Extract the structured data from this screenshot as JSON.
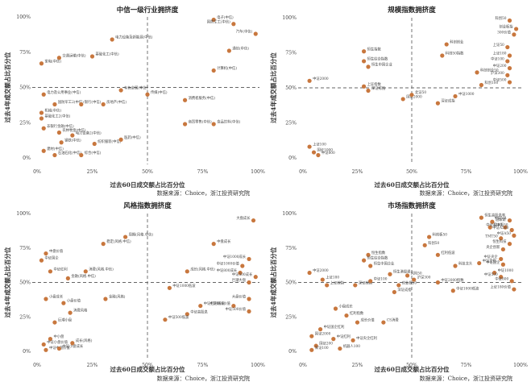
{
  "chart_data": [
    {
      "type": "scatter",
      "title": "中信一级行业拥挤度",
      "xlabel": "过去60日成交额占比百分位",
      "ylabel": "过去4年成交额占比百分位",
      "source": "数据来源：Choice，浙江投资研究院",
      "xlim": [
        0,
        100
      ],
      "ylim": [
        0,
        100
      ],
      "xticks": [
        "0%",
        "25%",
        "50%",
        "75%",
        "100%"
      ],
      "yticks": [
        "0%",
        "25%",
        "50%",
        "75%",
        "100%"
      ],
      "points": [
        {
          "label": "电子(中信)",
          "x": 80,
          "y": 98
        },
        {
          "label": "国防军工(中信)",
          "x": 89,
          "y": 95
        },
        {
          "label": "汽车(中信)",
          "x": 99,
          "y": 88
        },
        {
          "label": "电力设备及新能源(中信)",
          "x": 34,
          "y": 84
        },
        {
          "label": "基础化工(中信)",
          "x": 25,
          "y": 72
        },
        {
          "label": "交通运输(中信)",
          "x": 10,
          "y": 71
        },
        {
          "label": "家电(中信)",
          "x": 2,
          "y": 67
        },
        {
          "label": "通信(中信)",
          "x": 87,
          "y": 76
        },
        {
          "label": "计算机(中信)",
          "x": 80,
          "y": 62
        },
        {
          "label": "有色金属(中信)",
          "x": 38,
          "y": 48
        },
        {
          "label": "传媒(中信)",
          "x": 50,
          "y": 45
        },
        {
          "label": "消费者服务(中信)",
          "x": 67,
          "y": 41
        },
        {
          "label": "电力及公用事业(中信)",
          "x": 3,
          "y": 45
        },
        {
          "label": "国防军工2(中信)",
          "x": 8,
          "y": 38
        },
        {
          "label": "机械(中信)",
          "x": 2,
          "y": 32
        },
        {
          "label": "基础化工2(中信)",
          "x": 2,
          "y": 28
        },
        {
          "label": "非银行金融(中信)",
          "x": 3,
          "y": 21
        },
        {
          "label": "农林牧渔(中信)",
          "x": 10,
          "y": 18
        },
        {
          "label": "电力设备2(中信)",
          "x": 16,
          "y": 16
        },
        {
          "label": "钢铁(中信)",
          "x": 11,
          "y": 11
        },
        {
          "label": "建材(中信)",
          "x": 3,
          "y": 5
        },
        {
          "label": "石油石化(中信)",
          "x": 8,
          "y": 2
        },
        {
          "label": "综合(中信)",
          "x": 20,
          "y": 2
        },
        {
          "label": "纺织服装(中信)",
          "x": 26,
          "y": 10
        },
        {
          "label": "医药(中信)",
          "x": 38,
          "y": 13
        },
        {
          "label": "房地产(中信)",
          "x": 30,
          "y": 38
        },
        {
          "label": "银行(中信)",
          "x": 20,
          "y": 38
        },
        {
          "label": "商贸零售(中信)",
          "x": 67,
          "y": 24
        },
        {
          "label": "食品饮料(中信)",
          "x": 80,
          "y": 24
        }
      ]
    },
    {
      "type": "scatter",
      "title": "规模指数拥挤度",
      "xlabel": "过去60日成交额占比百分位",
      "ylabel": "过去4年成交额占比百分位",
      "source": "数据来源：Choice，浙江投资研究院",
      "xlim": [
        0,
        100
      ],
      "ylim": [
        0,
        100
      ],
      "xticks": [
        "0%",
        "25%",
        "50%",
        "75%",
        "100%"
      ],
      "yticks": [
        "0%",
        "25%",
        "50%",
        "75%",
        "100%"
      ],
      "points": [
        {
          "label": "科创50",
          "x": 95,
          "y": 98
        },
        {
          "label": "创业板指",
          "x": 98,
          "y": 92
        },
        {
          "label": "300价值",
          "x": 97,
          "y": 88
        },
        {
          "label": "科创创业",
          "x": 66,
          "y": 81
        },
        {
          "label": "科创50指数",
          "x": 64,
          "y": 73
        },
        {
          "label": "恒生指数",
          "x": 28,
          "y": 76
        },
        {
          "label": "恒生综合指数",
          "x": 28,
          "y": 69
        },
        {
          "label": "恒生中国企业",
          "x": 30,
          "y": 65
        },
        {
          "label": "上证50",
          "x": 94,
          "y": 79
        },
        {
          "label": "上证180",
          "x": 95,
          "y": 73
        },
        {
          "label": "中证100",
          "x": 94,
          "y": 69
        },
        {
          "label": "中证200",
          "x": 95,
          "y": 64
        },
        {
          "label": "沪深300",
          "x": 94,
          "y": 59
        },
        {
          "label": "中证500",
          "x": 95,
          "y": 54
        },
        {
          "label": "科创创业50",
          "x": 80,
          "y": 61
        },
        {
          "label": "科创100",
          "x": 82,
          "y": 52
        },
        {
          "label": "中证1000",
          "x": 70,
          "y": 44
        },
        {
          "label": "深证成指",
          "x": 62,
          "y": 39
        },
        {
          "label": "中证2000",
          "x": 3,
          "y": 55
        },
        {
          "label": "上证指数",
          "x": 28,
          "y": 51
        },
        {
          "label": "深证综指",
          "x": 30,
          "y": 48
        },
        {
          "label": "国证2000",
          "x": 46,
          "y": 42
        },
        {
          "label": "北证50",
          "x": 50,
          "y": 45
        },
        {
          "label": "上证100",
          "x": 3,
          "y": 8
        },
        {
          "label": "国证1000",
          "x": 5,
          "y": 4
        },
        {
          "label": "中证800",
          "x": 7,
          "y": 2
        }
      ]
    },
    {
      "type": "scatter",
      "title": "风格指数拥挤度",
      "xlabel": "过去60日成交额占比百分位",
      "ylabel": "过去4年成交额占比百分位",
      "source": "数据来源：Choice，浙江投资研究院",
      "xlim": [
        0,
        100
      ],
      "ylim": [
        0,
        100
      ],
      "xticks": [
        "0%",
        "25%",
        "50%",
        "75%",
        "100%"
      ],
      "yticks": [
        "0%",
        "25%",
        "50%",
        "75%",
        "100%"
      ],
      "points": [
        {
          "label": "大盘成长",
          "x": 98,
          "y": 95
        },
        {
          "label": "中盘成长",
          "x": 80,
          "y": 78
        },
        {
          "label": "周期(风格.中信)",
          "x": 40,
          "y": 83
        },
        {
          "label": "稳定(风格.中信)",
          "x": 30,
          "y": 78
        },
        {
          "label": "中盘价值",
          "x": 4,
          "y": 71
        },
        {
          "label": "中证国企",
          "x": 2,
          "y": 66
        },
        {
          "label": "中证红利",
          "x": 6,
          "y": 58
        },
        {
          "label": "消费(风格.中信)",
          "x": 22,
          "y": 58
        },
        {
          "label": "金融(风格.中信)",
          "x": 14,
          "y": 53
        },
        {
          "label": "成长(风格.中信)",
          "x": 68,
          "y": 58
        },
        {
          "label": "中证1000成长",
          "x": 96,
          "y": 67
        },
        {
          "label": "中证1000价值",
          "x": 93,
          "y": 62
        },
        {
          "label": "中证800成长",
          "x": 92,
          "y": 57
        },
        {
          "label": "中证500成长",
          "x": 99,
          "y": 54
        },
        {
          "label": "巨潮大盘",
          "x": 96,
          "y": 50
        },
        {
          "label": "小盘成长",
          "x": 4,
          "y": 38
        },
        {
          "label": "小盘价值",
          "x": 12,
          "y": 35
        },
        {
          "label": "金融(风格)",
          "x": 31,
          "y": 38
        },
        {
          "label": "消费风格",
          "x": 15,
          "y": 28
        },
        {
          "label": "巨潮小盘",
          "x": 8,
          "y": 21
        },
        {
          "label": "大盘价值",
          "x": 96,
          "y": 38
        },
        {
          "label": "中证800价值",
          "x": 89,
          "y": 33
        },
        {
          "label": "中证500价值",
          "x": 96,
          "y": 29
        },
        {
          "label": "中证高股息",
          "x": 68,
          "y": 27
        },
        {
          "label": "中证红利低波",
          "x": 74,
          "y": 33
        },
        {
          "label": "中证500低波",
          "x": 58,
          "y": 23
        },
        {
          "label": "中证1000低波",
          "x": 60,
          "y": 46
        },
        {
          "label": "中小盘",
          "x": 6,
          "y": 9
        },
        {
          "label": "中证小盘价值",
          "x": 3,
          "y": 5
        },
        {
          "label": "中证中盘价值",
          "x": 4,
          "y": 1
        },
        {
          "label": "中证小盘成长",
          "x": 10,
          "y": 2
        },
        {
          "label": "成长(风格)",
          "x": 16,
          "y": 6
        }
      ]
    },
    {
      "type": "scatter",
      "title": "市场指数拥挤度",
      "xlabel": "过去60日成交额占比百分位",
      "ylabel": "过去4年成交额占比百分位",
      "source": "数据来源：Choice，浙江投资研究院",
      "xlim": [
        0,
        100
      ],
      "ylim": [
        0,
        100
      ],
      "xticks": [
        "0%",
        "25%",
        "50%",
        "75%",
        "100%"
      ],
      "yticks": [
        "0%",
        "25%",
        "50%",
        "75%",
        "100%"
      ],
      "points": [
        {
          "label": "恒生高股息率",
          "x": 82,
          "y": 97
        },
        {
          "label": "道琼斯",
          "x": 87,
          "y": 94
        },
        {
          "label": "中证VR",
          "x": 95,
          "y": 95
        },
        {
          "label": "基本面50",
          "x": 86,
          "y": 90
        },
        {
          "label": "中证A100",
          "x": 93,
          "y": 90
        },
        {
          "label": "中证A500",
          "x": 96,
          "y": 88
        },
        {
          "label": "中证A50",
          "x": 97,
          "y": 84
        },
        {
          "label": "TMT50",
          "x": 91,
          "y": 82
        },
        {
          "label": "恒生科技",
          "x": 95,
          "y": 78
        },
        {
          "label": "央企创新",
          "x": 92,
          "y": 74
        },
        {
          "label": "科创板50",
          "x": 58,
          "y": 83
        },
        {
          "label": "科创50",
          "x": 56,
          "y": 77
        },
        {
          "label": "红利低波",
          "x": 62,
          "y": 70
        },
        {
          "label": "中证全指",
          "x": 81,
          "y": 64
        },
        {
          "label": "中证央企",
          "x": 91,
          "y": 67
        },
        {
          "label": "中证国企",
          "x": 92,
          "y": 63
        },
        {
          "label": "科技龙头",
          "x": 70,
          "y": 62
        },
        {
          "label": "恒生指数",
          "x": 30,
          "y": 70
        },
        {
          "label": "恒生综合指数",
          "x": 28,
          "y": 66
        },
        {
          "label": "恒生中国企业",
          "x": 31,
          "y": 62
        },
        {
          "label": "恒生港股通",
          "x": 40,
          "y": 56
        },
        {
          "label": "中证1000",
          "x": 88,
          "y": 57
        },
        {
          "label": "中证500",
          "x": 91,
          "y": 54
        },
        {
          "label": "中证800",
          "x": 96,
          "y": 51
        },
        {
          "label": "中证2000",
          "x": 3,
          "y": 57
        },
        {
          "label": "上证180",
          "x": 9,
          "y": 52
        },
        {
          "label": "上证综指",
          "x": 11,
          "y": 48
        },
        {
          "label": "深证综指",
          "x": 24,
          "y": 48
        },
        {
          "label": "中证100",
          "x": 31,
          "y": 51
        },
        {
          "label": "创业板50",
          "x": 44,
          "y": 48
        },
        {
          "label": "沪深300",
          "x": 51,
          "y": 52
        },
        {
          "label": "风险50",
          "x": 48,
          "y": 55
        },
        {
          "label": "中证2000指数",
          "x": 62,
          "y": 50
        },
        {
          "label": "深证成指",
          "x": 42,
          "y": 43
        },
        {
          "label": "中证1000低波",
          "x": 69,
          "y": 44
        },
        {
          "label": "小盘成长",
          "x": 15,
          "y": 31
        },
        {
          "label": "红利指数",
          "x": 20,
          "y": 26
        },
        {
          "label": "成长价值",
          "x": 25,
          "y": 21
        },
        {
          "label": "中证国企红利",
          "x": 8,
          "y": 16
        },
        {
          "label": "CS消费",
          "x": 37,
          "y": 21
        },
        {
          "label": "国证2000",
          "x": 4,
          "y": 11
        },
        {
          "label": "中证红利",
          "x": 14,
          "y": 9
        },
        {
          "label": "中证央企红利",
          "x": 23,
          "y": 8
        },
        {
          "label": "国证200",
          "x": 6,
          "y": 4
        },
        {
          "label": "机器人100",
          "x": 17,
          "y": 2
        },
        {
          "label": "深证100",
          "x": 4,
          "y": 1
        },
        {
          "label": "上证180价值",
          "x": 97,
          "y": 45
        }
      ]
    }
  ]
}
